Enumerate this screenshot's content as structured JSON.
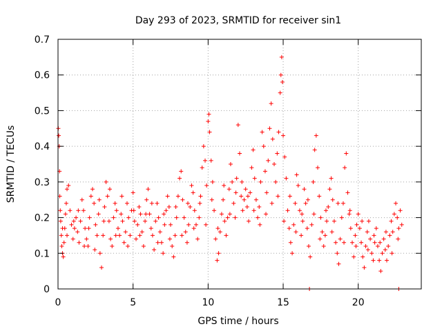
{
  "chart_data": {
    "type": "scatter",
    "title": "Day 293 of 2023, SRMTID for receiver sin1",
    "xlabel": "GPS time / hours",
    "ylabel": "SRMTID / TECUs",
    "xlim": [
      0,
      24.2
    ],
    "ylim": [
      0,
      0.7
    ],
    "xticks": [
      0,
      5,
      10,
      15,
      20
    ],
    "yticks": [
      0,
      0.1,
      0.2,
      0.3,
      0.4,
      0.5,
      0.6,
      0.7
    ],
    "xtick_labels": [
      "0",
      "5",
      "10",
      "15",
      "20"
    ],
    "ytick_labels": [
      "0",
      "0.1",
      "0.2",
      "0.3",
      "0.4",
      "0.5",
      "0.6",
      "0.7"
    ],
    "grid": true,
    "marker": "+",
    "color": "#ff0000",
    "series": [
      {
        "name": "sin1",
        "points": [
          [
            0.02,
            0.45
          ],
          [
            0.05,
            0.43
          ],
          [
            0.08,
            0.4
          ],
          [
            0.1,
            0.33
          ],
          [
            0.12,
            0.26
          ],
          [
            0.15,
            0.22
          ],
          [
            0.18,
            0.19
          ],
          [
            0.22,
            0.15
          ],
          [
            0.25,
            0.12
          ],
          [
            0.3,
            0.1
          ],
          [
            0.35,
            0.09
          ],
          [
            0.4,
            0.13
          ],
          [
            0.45,
            0.17
          ],
          [
            0.5,
            0.21
          ],
          [
            0.55,
            0.24
          ],
          [
            0.6,
            0.28
          ],
          [
            0.7,
            0.29
          ],
          [
            0.8,
            0.22
          ],
          [
            0.9,
            0.18
          ],
          [
            1.0,
            0.14
          ],
          [
            1.1,
            0.17
          ],
          [
            1.2,
            0.2
          ],
          [
            1.3,
            0.16
          ],
          [
            1.4,
            0.13
          ],
          [
            1.5,
            0.19
          ],
          [
            1.6,
            0.25
          ],
          [
            1.7,
            0.22
          ],
          [
            1.8,
            0.17
          ],
          [
            1.9,
            0.14
          ],
          [
            2.0,
            0.12
          ],
          [
            2.1,
            0.2
          ],
          [
            2.2,
            0.26
          ],
          [
            2.3,
            0.28
          ],
          [
            2.4,
            0.24
          ],
          [
            2.5,
            0.18
          ],
          [
            2.6,
            0.15
          ],
          [
            2.7,
            0.21
          ],
          [
            2.8,
            0.1
          ],
          [
            2.9,
            0.06
          ],
          [
            3.0,
            0.15
          ],
          [
            3.1,
            0.23
          ],
          [
            3.2,
            0.3
          ],
          [
            3.3,
            0.26
          ],
          [
            3.4,
            0.19
          ],
          [
            3.5,
            0.14
          ],
          [
            3.6,
            0.12
          ],
          [
            3.7,
            0.2
          ],
          [
            3.8,
            0.24
          ],
          [
            3.9,
            0.22
          ],
          [
            4.0,
            0.17
          ],
          [
            4.1,
            0.15
          ],
          [
            4.2,
            0.21
          ],
          [
            4.3,
            0.19
          ],
          [
            4.4,
            0.13
          ],
          [
            4.5,
            0.16
          ],
          [
            4.6,
            0.24
          ],
          [
            4.7,
            0.2
          ],
          [
            4.8,
            0.15
          ],
          [
            4.9,
            0.22
          ],
          [
            5.0,
            0.27
          ],
          [
            5.1,
            0.19
          ],
          [
            5.2,
            0.14
          ],
          [
            5.3,
            0.18
          ],
          [
            5.4,
            0.23
          ],
          [
            5.5,
            0.21
          ],
          [
            5.6,
            0.16
          ],
          [
            5.7,
            0.12
          ],
          [
            5.8,
            0.19
          ],
          [
            5.9,
            0.25
          ],
          [
            6.0,
            0.28
          ],
          [
            6.1,
            0.21
          ],
          [
            6.2,
            0.17
          ],
          [
            6.3,
            0.15
          ],
          [
            6.4,
            0.11
          ],
          [
            6.5,
            0.19
          ],
          [
            6.6,
            0.24
          ],
          [
            6.7,
            0.2
          ],
          [
            6.8,
            0.16
          ],
          [
            6.9,
            0.13
          ],
          [
            7.0,
            0.1
          ],
          [
            7.1,
            0.18
          ],
          [
            7.2,
            0.22
          ],
          [
            7.3,
            0.26
          ],
          [
            7.4,
            0.23
          ],
          [
            7.5,
            0.18
          ],
          [
            7.6,
            0.12
          ],
          [
            7.7,
            0.09
          ],
          [
            7.8,
            0.15
          ],
          [
            7.9,
            0.2
          ],
          [
            8.0,
            0.26
          ],
          [
            8.1,
            0.31
          ],
          [
            8.2,
            0.33
          ],
          [
            8.3,
            0.25
          ],
          [
            8.4,
            0.2
          ],
          [
            8.5,
            0.16
          ],
          [
            8.6,
            0.13
          ],
          [
            8.7,
            0.18
          ],
          [
            8.8,
            0.23
          ],
          [
            8.9,
            0.29
          ],
          [
            9.0,
            0.27
          ],
          [
            9.1,
            0.22
          ],
          [
            9.2,
            0.18
          ],
          [
            9.3,
            0.14
          ],
          [
            9.4,
            0.2
          ],
          [
            9.5,
            0.26
          ],
          [
            9.6,
            0.34
          ],
          [
            9.7,
            0.4
          ],
          [
            9.8,
            0.36
          ],
          [
            9.9,
            0.29
          ],
          [
            10.0,
            0.47
          ],
          [
            10.05,
            0.49
          ],
          [
            10.1,
            0.44
          ],
          [
            10.2,
            0.36
          ],
          [
            10.3,
            0.3
          ],
          [
            10.4,
            0.22
          ],
          [
            10.5,
            0.14
          ],
          [
            10.6,
            0.08
          ],
          [
            10.7,
            0.1
          ],
          [
            10.8,
            0.16
          ],
          [
            10.9,
            0.21
          ],
          [
            11.0,
            0.25
          ],
          [
            11.1,
            0.19
          ],
          [
            11.2,
            0.15
          ],
          [
            11.3,
            0.2
          ],
          [
            11.4,
            0.28
          ],
          [
            11.5,
            0.35
          ],
          [
            11.6,
            0.3
          ],
          [
            11.7,
            0.24
          ],
          [
            11.8,
            0.2
          ],
          [
            11.9,
            0.31
          ],
          [
            12.0,
            0.46
          ],
          [
            12.1,
            0.38
          ],
          [
            12.2,
            0.26
          ],
          [
            12.3,
            0.22
          ],
          [
            12.4,
            0.25
          ],
          [
            12.5,
            0.28
          ],
          [
            12.6,
            0.23
          ],
          [
            12.7,
            0.19
          ],
          [
            12.8,
            0.27
          ],
          [
            12.9,
            0.34
          ],
          [
            13.0,
            0.39
          ],
          [
            13.1,
            0.31
          ],
          [
            13.2,
            0.25
          ],
          [
            13.3,
            0.2
          ],
          [
            13.4,
            0.23
          ],
          [
            13.5,
            0.3
          ],
          [
            13.6,
            0.44
          ],
          [
            13.7,
            0.4
          ],
          [
            13.8,
            0.33
          ],
          [
            13.9,
            0.27
          ],
          [
            14.0,
            0.36
          ],
          [
            14.1,
            0.45
          ],
          [
            14.2,
            0.52
          ],
          [
            14.3,
            0.42
          ],
          [
            14.4,
            0.35
          ],
          [
            14.5,
            0.3
          ],
          [
            14.6,
            0.38
          ],
          [
            14.7,
            0.44
          ],
          [
            14.8,
            0.55
          ],
          [
            14.85,
            0.6
          ],
          [
            14.9,
            0.65
          ],
          [
            14.95,
            0.58
          ],
          [
            15.0,
            0.43
          ],
          [
            15.1,
            0.37
          ],
          [
            15.2,
            0.31
          ],
          [
            15.3,
            0.22
          ],
          [
            15.4,
            0.17
          ],
          [
            15.5,
            0.13
          ],
          [
            15.6,
            0.1
          ],
          [
            15.7,
            0.18
          ],
          [
            15.8,
            0.24
          ],
          [
            15.9,
            0.32
          ],
          [
            16.0,
            0.29
          ],
          [
            16.1,
            0.22
          ],
          [
            16.2,
            0.15
          ],
          [
            16.3,
            0.19
          ],
          [
            16.4,
            0.28
          ],
          [
            16.5,
            0.24
          ],
          [
            16.6,
            0.17
          ],
          [
            16.7,
            0.12
          ],
          [
            16.8,
            0.09
          ],
          [
            16.9,
            0.18
          ],
          [
            17.0,
            0.3
          ],
          [
            17.1,
            0.39
          ],
          [
            17.2,
            0.43
          ],
          [
            17.3,
            0.34
          ],
          [
            17.4,
            0.26
          ],
          [
            17.5,
            0.2
          ],
          [
            17.6,
            0.16
          ],
          [
            17.7,
            0.12
          ],
          [
            17.8,
            0.15
          ],
          [
            17.9,
            0.19
          ],
          [
            18.0,
            0.23
          ],
          [
            18.1,
            0.28
          ],
          [
            18.2,
            0.31
          ],
          [
            18.3,
            0.25
          ],
          [
            18.4,
            0.19
          ],
          [
            18.5,
            0.13
          ],
          [
            18.6,
            0.1
          ],
          [
            18.7,
            0.07
          ],
          [
            18.8,
            0.14
          ],
          [
            18.9,
            0.2
          ],
          [
            19.0,
            0.24
          ],
          [
            19.1,
            0.34
          ],
          [
            19.2,
            0.38
          ],
          [
            19.3,
            0.27
          ],
          [
            19.4,
            0.21
          ],
          [
            19.5,
            0.17
          ],
          [
            19.6,
            0.13
          ],
          [
            19.7,
            0.09
          ],
          [
            19.8,
            0.15
          ],
          [
            19.9,
            0.18
          ],
          [
            20.0,
            0.21
          ],
          [
            20.1,
            0.17
          ],
          [
            20.2,
            0.13
          ],
          [
            20.3,
            0.09
          ],
          [
            20.4,
            0.06
          ],
          [
            20.5,
            0.12
          ],
          [
            20.6,
            0.16
          ],
          [
            20.7,
            0.19
          ],
          [
            20.8,
            0.14
          ],
          [
            20.9,
            0.1
          ],
          [
            21.0,
            0.08
          ],
          [
            21.1,
            0.13
          ],
          [
            21.2,
            0.17
          ],
          [
            21.3,
            0.12
          ],
          [
            21.4,
            0.08
          ],
          [
            21.5,
            0.05
          ],
          [
            21.6,
            0.1
          ],
          [
            21.7,
            0.14
          ],
          [
            21.8,
            0.11
          ],
          [
            21.9,
            0.08
          ],
          [
            22.0,
            0.12
          ],
          [
            22.1,
            0.15
          ],
          [
            22.2,
            0.19
          ],
          [
            22.3,
            0.16
          ],
          [
            22.4,
            0.21
          ],
          [
            22.5,
            0.24
          ],
          [
            22.6,
            0.2
          ],
          [
            22.7,
            0.17
          ],
          [
            22.8,
            0.22
          ],
          [
            22.9,
            0.18
          ],
          [
            0.3,
            0.17
          ],
          [
            0.6,
            0.15
          ],
          [
            1.05,
            0.19
          ],
          [
            1.35,
            0.22
          ],
          [
            1.75,
            0.12
          ],
          [
            2.05,
            0.17
          ],
          [
            2.45,
            0.11
          ],
          [
            2.75,
            0.25
          ],
          [
            3.05,
            0.19
          ],
          [
            3.45,
            0.28
          ],
          [
            3.85,
            0.15
          ],
          [
            4.25,
            0.26
          ],
          [
            4.65,
            0.12
          ],
          [
            5.05,
            0.22
          ],
          [
            5.45,
            0.15
          ],
          [
            5.85,
            0.21
          ],
          [
            6.25,
            0.24
          ],
          [
            6.65,
            0.13
          ],
          [
            7.05,
            0.21
          ],
          [
            7.45,
            0.14
          ],
          [
            7.85,
            0.23
          ],
          [
            8.25,
            0.15
          ],
          [
            8.65,
            0.24
          ],
          [
            9.05,
            0.17
          ],
          [
            9.45,
            0.24
          ],
          [
            9.85,
            0.18
          ],
          [
            10.25,
            0.25
          ],
          [
            10.65,
            0.17
          ],
          [
            11.05,
            0.29
          ],
          [
            11.45,
            0.21
          ],
          [
            11.85,
            0.27
          ],
          [
            12.25,
            0.3
          ],
          [
            12.65,
            0.26
          ],
          [
            13.05,
            0.22
          ],
          [
            13.45,
            0.18
          ],
          [
            13.85,
            0.21
          ],
          [
            14.25,
            0.24
          ],
          [
            14.65,
            0.26
          ],
          [
            15.05,
            0.19
          ],
          [
            15.45,
            0.26
          ],
          [
            15.85,
            0.16
          ],
          [
            16.25,
            0.21
          ],
          [
            16.65,
            0.25
          ],
          [
            17.05,
            0.21
          ],
          [
            17.45,
            0.14
          ],
          [
            17.85,
            0.22
          ],
          [
            18.25,
            0.16
          ],
          [
            18.65,
            0.24
          ],
          [
            19.05,
            0.13
          ],
          [
            19.45,
            0.22
          ],
          [
            19.85,
            0.12
          ],
          [
            20.25,
            0.19
          ],
          [
            20.65,
            0.11
          ],
          [
            21.05,
            0.15
          ],
          [
            21.45,
            0.13
          ],
          [
            21.85,
            0.16
          ],
          [
            22.25,
            0.1
          ],
          [
            22.65,
            0.14
          ],
          [
            16.75,
            0.0
          ],
          [
            22.7,
            0.0
          ]
        ]
      }
    ]
  }
}
